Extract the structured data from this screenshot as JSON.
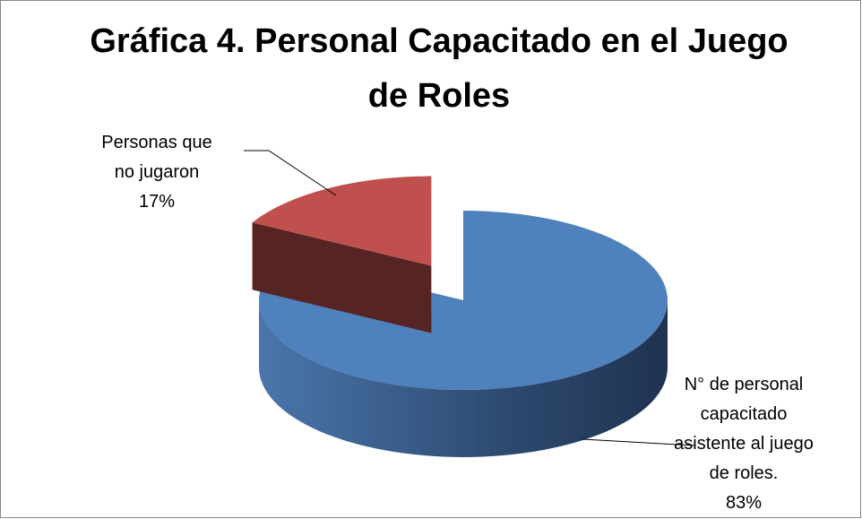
{
  "chart_data": {
    "type": "pie3d",
    "title": "Gráfica 4. Personal Capacitado en el Juego de Roles",
    "categories": [
      "N° de personal capacitado asistente al juego de roles.",
      "Personas que no jugaron"
    ],
    "values": [
      83,
      17
    ],
    "value_labels": [
      "83%",
      "17%"
    ],
    "colors": [
      "#4f81bd",
      "#c0504d"
    ],
    "exploded": [
      false,
      true
    ]
  }
}
